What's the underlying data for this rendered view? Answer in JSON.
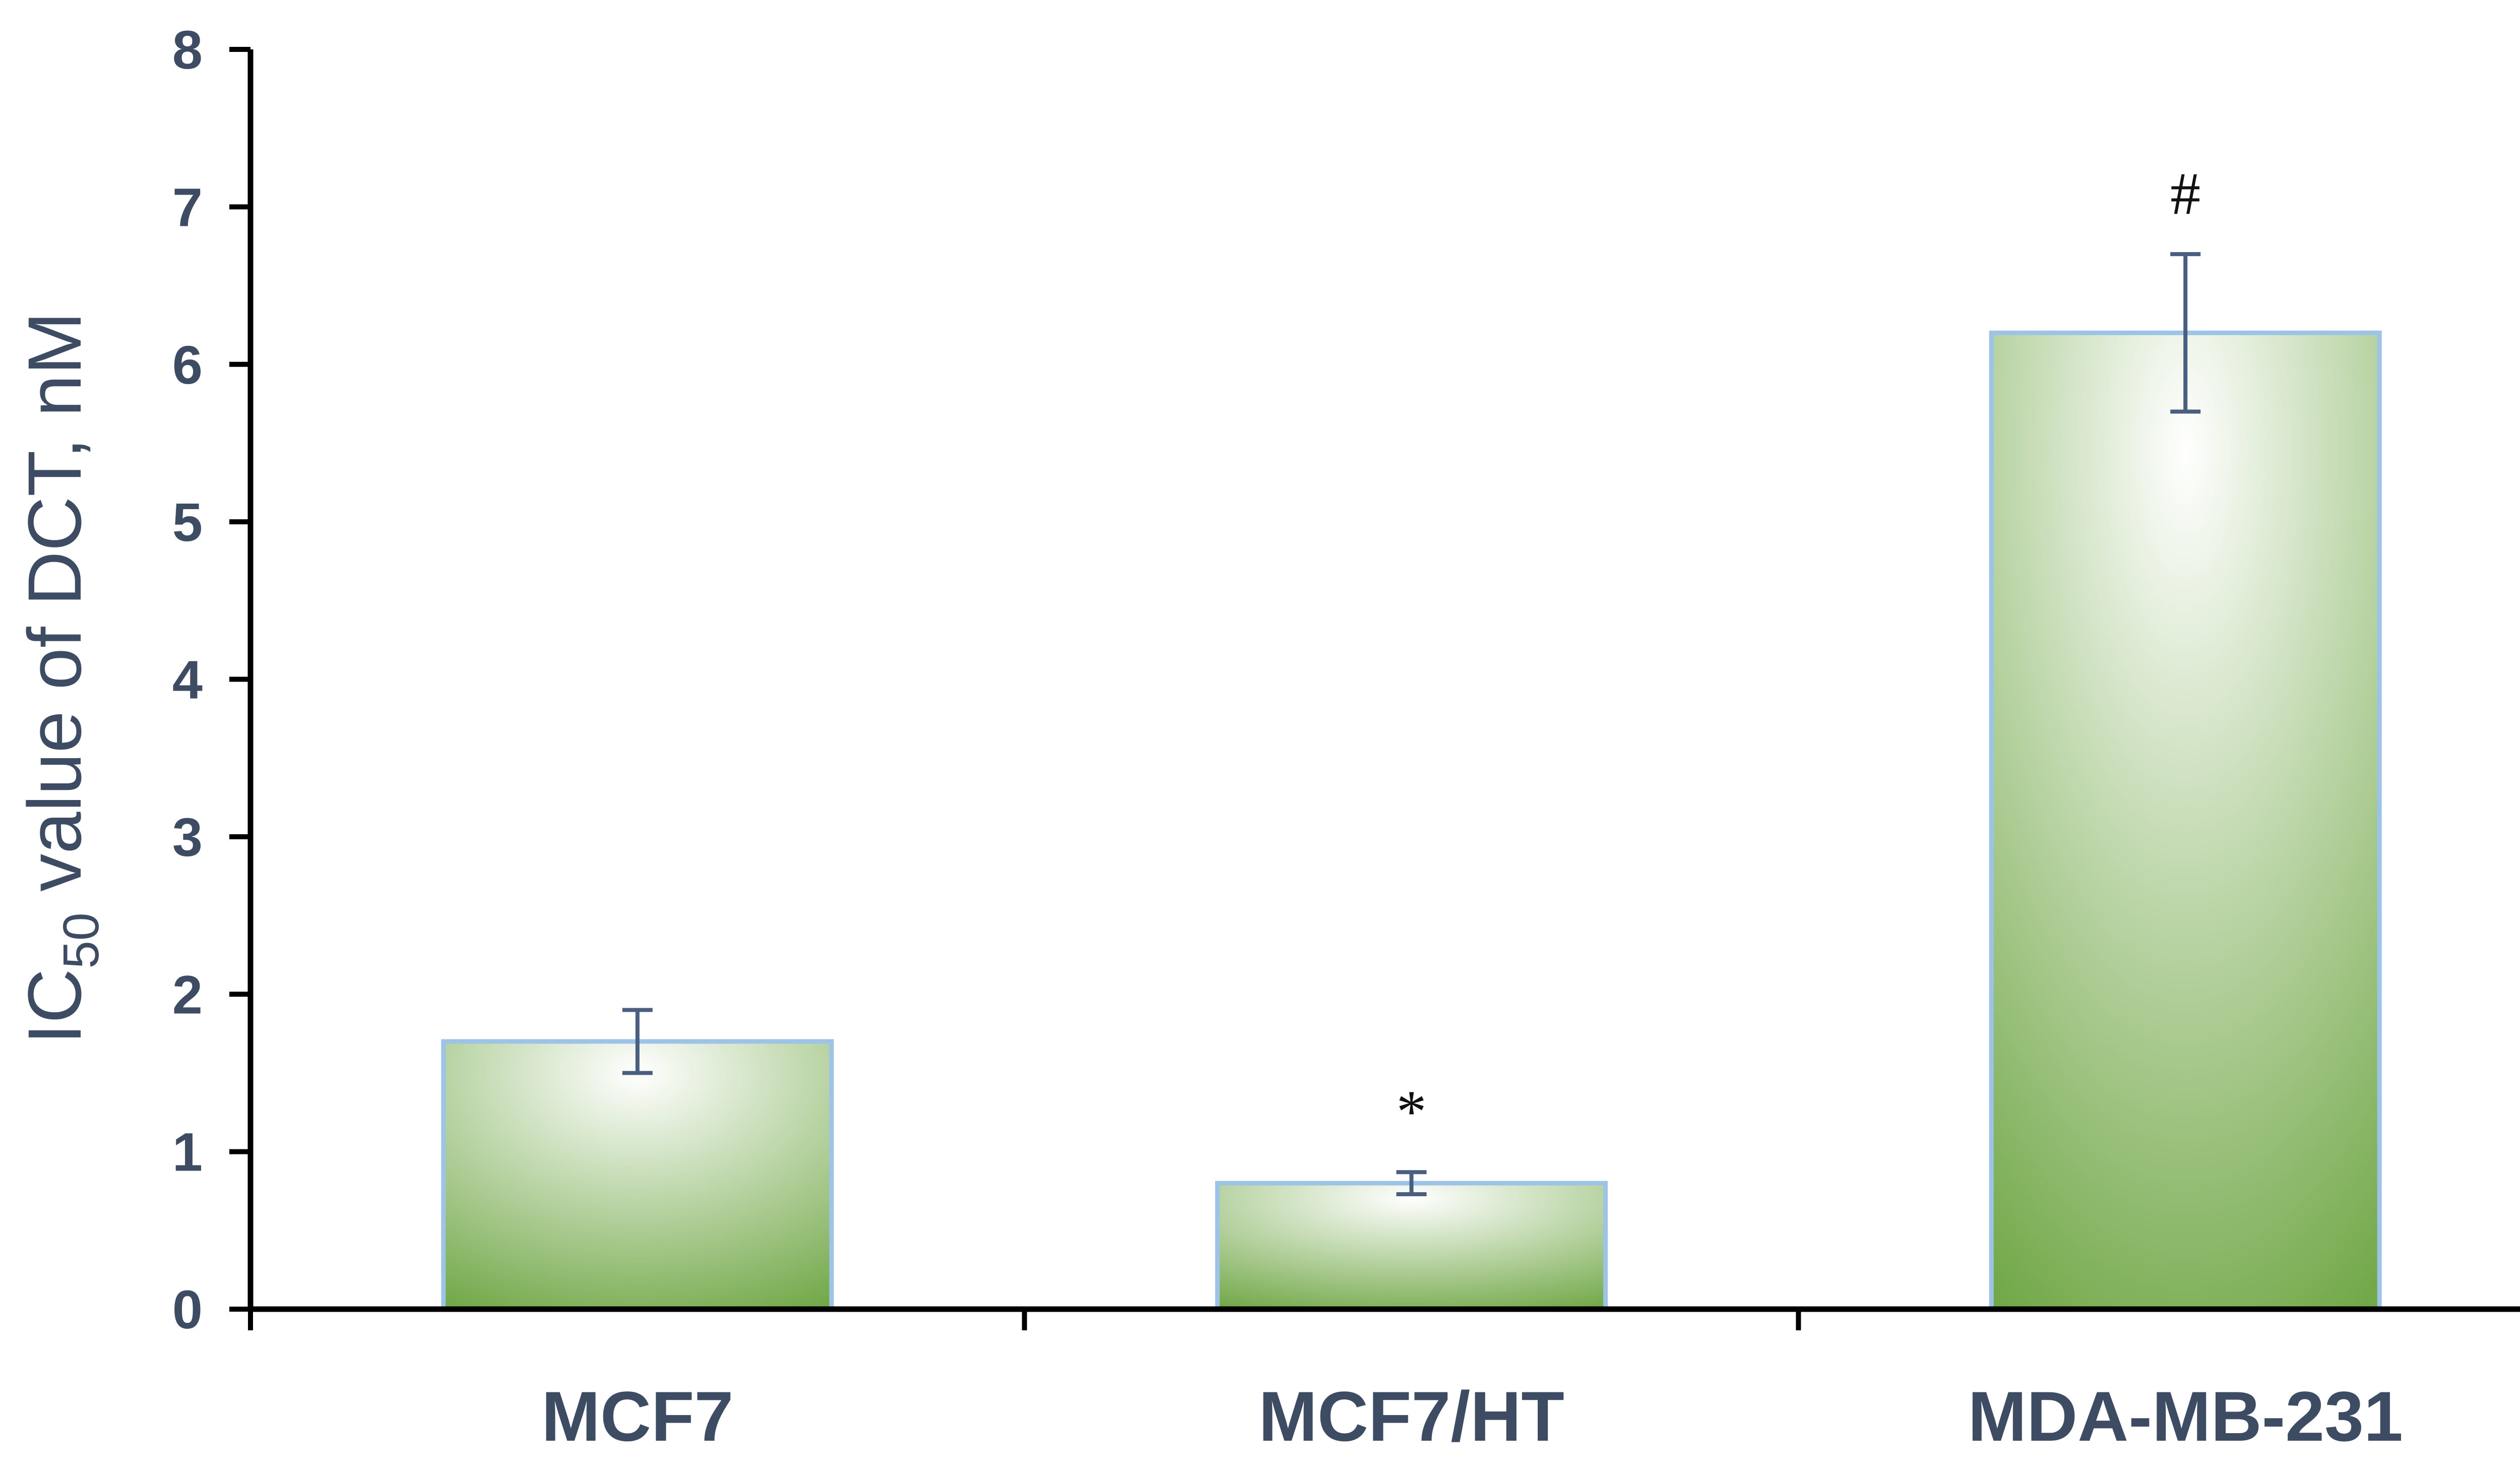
{
  "chart_data": {
    "type": "bar",
    "categories": [
      "MCF7",
      "MCF7/HT",
      "MDA-MB-231"
    ],
    "values": [
      1.7,
      0.8,
      6.2
    ],
    "errors": [
      0.2,
      0.07,
      0.5
    ],
    "annotations": [
      "",
      "*",
      "#"
    ],
    "ylabel": {
      "prefix": "IC",
      "subscript": "50",
      "suffix": " value of DCT, nM"
    },
    "xlabel": "",
    "ylim": [
      0,
      8
    ],
    "yticks": [
      0,
      1,
      2,
      3,
      4,
      5,
      6,
      7,
      8
    ],
    "grid": false,
    "colors": {
      "bar_light": "#ffffff",
      "bar_dark": "#6aa33e",
      "bar_border": "#9dc3e6",
      "axis": "#000000",
      "error_bar": "#4a5f80",
      "text": "#3d4b63"
    }
  }
}
